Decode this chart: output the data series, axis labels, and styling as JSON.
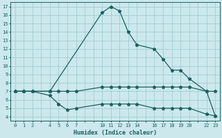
{
  "xlabel": "Humidex (Indice chaleur)",
  "bg_color": "#cce8ec",
  "grid_color": "#9ecdd4",
  "line_color": "#1a6060",
  "xticks_all": [
    0,
    1,
    2,
    3,
    4,
    5,
    6,
    7,
    8,
    9,
    10,
    11,
    12,
    13,
    14,
    15,
    16,
    17,
    18,
    19,
    20,
    21,
    22,
    23
  ],
  "xtick_labels": {
    "0": "0",
    "1": "1",
    "2": "2",
    "3": "",
    "4": "4",
    "5": "5",
    "6": "6",
    "7": "7",
    "8": "",
    "9": "",
    "10": "10",
    "11": "11",
    "12": "12",
    "13": "13",
    "14": "14",
    "15": "",
    "16": "16",
    "17": "17",
    "18": "18",
    "19": "19",
    "20": "20",
    "21": "",
    "22": "22",
    "23": "23"
  },
  "yticks": [
    4,
    5,
    6,
    7,
    8,
    9,
    10,
    11,
    12,
    13,
    14,
    15,
    16,
    17
  ],
  "xlim": [
    -0.5,
    23.5
  ],
  "ylim": [
    3.5,
    17.5
  ],
  "line1_x": [
    0,
    1,
    2,
    4,
    10,
    11,
    12,
    13,
    14,
    16,
    17,
    18,
    19,
    20,
    22,
    23
  ],
  "line1_y": [
    7.0,
    7.0,
    7.0,
    7.0,
    16.3,
    17.0,
    16.5,
    14.0,
    12.5,
    12.0,
    10.8,
    9.5,
    9.5,
    8.5,
    7.0,
    4.1
  ],
  "line2_x": [
    0,
    1,
    2,
    4,
    5,
    6,
    7,
    10,
    11,
    12,
    13,
    14,
    16,
    17,
    18,
    19,
    20,
    22,
    23
  ],
  "line2_y": [
    7.0,
    7.0,
    7.0,
    7.0,
    7.0,
    7.0,
    7.0,
    7.5,
    7.5,
    7.5,
    7.5,
    7.5,
    7.5,
    7.5,
    7.5,
    7.5,
    7.5,
    7.0,
    7.0
  ],
  "line3_x": [
    0,
    1,
    2,
    4,
    5,
    6,
    7,
    10,
    11,
    12,
    13,
    14,
    16,
    17,
    18,
    19,
    20,
    22,
    23
  ],
  "line3_y": [
    7.0,
    7.0,
    7.0,
    6.5,
    5.5,
    4.8,
    5.0,
    5.5,
    5.5,
    5.5,
    5.5,
    5.5,
    5.0,
    5.0,
    5.0,
    5.0,
    5.0,
    4.3,
    4.1
  ]
}
